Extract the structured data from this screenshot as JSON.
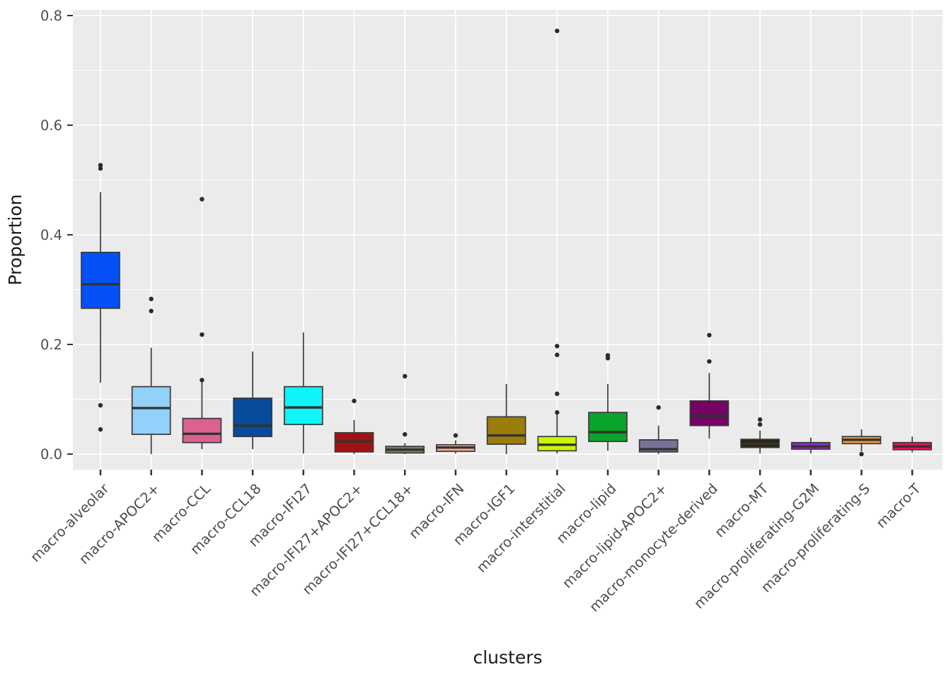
{
  "chart_data": {
    "type": "boxplot",
    "title": "",
    "xlabel": "clusters",
    "ylabel": "Proportion",
    "ylim": [
      -0.04,
      0.81
    ],
    "yticks": [
      0.0,
      0.2,
      0.4,
      0.6,
      0.8
    ],
    "ytick_labels": [
      "0.0",
      "0.2",
      "0.4",
      "0.6",
      "0.8"
    ],
    "minor_yticks": [
      0.1,
      0.3,
      0.5,
      0.7
    ],
    "grid": "on",
    "legend": "none",
    "panel_bg": "#EBEBEB",
    "grid_color": "#FFFFFF",
    "box_stroke": "#3A3A3A",
    "median_color": "#333333",
    "outlier_color": "#2B2B2B",
    "axis_text_color": "#4D4D4D",
    "axis_title_color": "#1A1A1A",
    "tick_mark_color": "#333333",
    "categories": [
      {
        "label": "macro-alveolar",
        "color": "#0551F5",
        "whisker_low": 0.13,
        "q1": 0.266,
        "median": 0.31,
        "q3": 0.368,
        "whisker_high": 0.478,
        "outliers": [
          0.527,
          0.521,
          0.089,
          0.045
        ]
      },
      {
        "label": "macro-APOC2+",
        "color": "#92D1FA",
        "whisker_low": 0.0,
        "q1": 0.036,
        "median": 0.084,
        "q3": 0.123,
        "whisker_high": 0.194,
        "outliers": [
          0.283,
          0.261
        ]
      },
      {
        "label": "macro-CCL",
        "color": "#DB6191",
        "whisker_low": 0.009,
        "q1": 0.021,
        "median": 0.037,
        "q3": 0.065,
        "whisker_high": 0.132,
        "outliers": [
          0.465,
          0.218,
          0.135
        ]
      },
      {
        "label": "macro-CCL18",
        "color": "#084A9B",
        "whisker_low": 0.009,
        "q1": 0.032,
        "median": 0.052,
        "q3": 0.102,
        "whisker_high": 0.187,
        "outliers": []
      },
      {
        "label": "macro-IFI27",
        "color": "#0FF3F9",
        "whisker_low": 0.001,
        "q1": 0.054,
        "median": 0.085,
        "q3": 0.123,
        "whisker_high": 0.222,
        "outliers": []
      },
      {
        "label": "macro-IFI27+APOC2+",
        "color": "#A31212",
        "whisker_low": 0.0,
        "q1": 0.004,
        "median": 0.023,
        "q3": 0.039,
        "whisker_high": 0.062,
        "outliers": [
          0.097
        ]
      },
      {
        "label": "macro-IFI27+CCL18+",
        "color": "#79805E",
        "whisker_low": 0.0,
        "q1": 0.002,
        "median": 0.008,
        "q3": 0.014,
        "whisker_high": 0.02,
        "outliers": [
          0.142,
          0.036
        ]
      },
      {
        "label": "macro-IFN",
        "color": "#F8A98B",
        "whisker_low": 0.001,
        "q1": 0.005,
        "median": 0.012,
        "q3": 0.017,
        "whisker_high": 0.025,
        "outliers": [
          0.034
        ]
      },
      {
        "label": "macro-IGF1",
        "color": "#9A7D0A",
        "whisker_low": 0.0,
        "q1": 0.018,
        "median": 0.034,
        "q3": 0.068,
        "whisker_high": 0.128,
        "outliers": []
      },
      {
        "label": "macro-interstitial",
        "color": "#C9F507",
        "whisker_low": 0.001,
        "q1": 0.006,
        "median": 0.017,
        "q3": 0.032,
        "whisker_high": 0.075,
        "outliers": [
          0.772,
          0.197,
          0.181,
          0.11,
          0.076
        ]
      },
      {
        "label": "macro-lipid",
        "color": "#0AA32B",
        "whisker_low": 0.006,
        "q1": 0.023,
        "median": 0.04,
        "q3": 0.076,
        "whisker_high": 0.128,
        "outliers": [
          0.18,
          0.175
        ]
      },
      {
        "label": "macro-lipid-APOC2+",
        "color": "#7A7198",
        "whisker_low": 0.0,
        "q1": 0.004,
        "median": 0.009,
        "q3": 0.026,
        "whisker_high": 0.052,
        "outliers": [
          0.085
        ]
      },
      {
        "label": "macro-monocyte-derived",
        "color": "#740365",
        "whisker_low": 0.028,
        "q1": 0.052,
        "median": 0.07,
        "q3": 0.097,
        "whisker_high": 0.148,
        "outliers": [
          0.217,
          0.169
        ]
      },
      {
        "label": "macro-MT",
        "color": "#2B2513",
        "whisker_low": 0.001,
        "q1": 0.012,
        "median": 0.019,
        "q3": 0.027,
        "whisker_high": 0.043,
        "outliers": [
          0.063,
          0.054
        ]
      },
      {
        "label": "macro-proliferating-G2M",
        "color": "#9328C8",
        "whisker_low": 0.001,
        "q1": 0.009,
        "median": 0.014,
        "q3": 0.021,
        "whisker_high": 0.03,
        "outliers": []
      },
      {
        "label": "macro-proliferating-S",
        "color": "#F59140",
        "whisker_low": 0.005,
        "q1": 0.019,
        "median": 0.026,
        "q3": 0.032,
        "whisker_high": 0.045,
        "outliers": [
          0.0
        ]
      },
      {
        "label": "macro-T",
        "color": "#EA1254",
        "whisker_low": 0.003,
        "q1": 0.008,
        "median": 0.014,
        "q3": 0.021,
        "whisker_high": 0.032,
        "outliers": []
      }
    ]
  }
}
